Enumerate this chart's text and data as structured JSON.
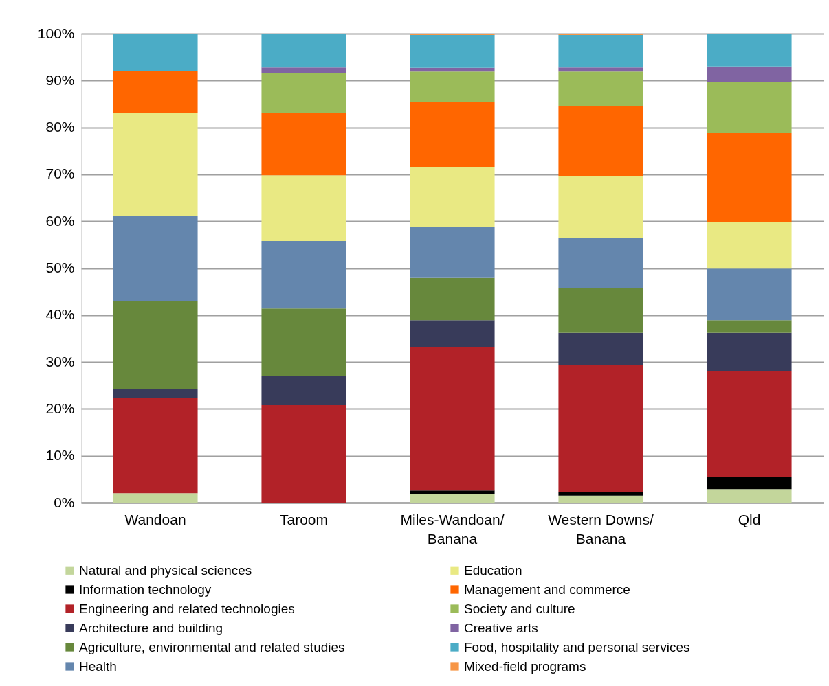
{
  "chart_data": {
    "type": "bar",
    "stacked": true,
    "categories": [
      "Wandoan",
      "Taroom",
      "Miles-Wandoan/\nBanana",
      "Western Downs/\nBanana",
      "Qld"
    ],
    "ylim": [
      0,
      100
    ],
    "yticks": [
      {
        "value": 0,
        "label": "0%"
      },
      {
        "value": 10,
        "label": "10%"
      },
      {
        "value": 20,
        "label": "20%"
      },
      {
        "value": 30,
        "label": "30%"
      },
      {
        "value": 40,
        "label": "40%"
      },
      {
        "value": 50,
        "label": "50%"
      },
      {
        "value": 60,
        "label": "60%"
      },
      {
        "value": 70,
        "label": "70%"
      },
      {
        "value": 80,
        "label": "80%"
      },
      {
        "value": 90,
        "label": "90%"
      },
      {
        "value": 100,
        "label": "100%"
      }
    ],
    "grid": "y",
    "legend": "bottom",
    "series": [
      {
        "name": "Natural and physical sciences",
        "color": "#c3d69b",
        "values": [
          2.0,
          0,
          1.9,
          1.5,
          2.9
        ]
      },
      {
        "name": "Information technology",
        "color": "#000000",
        "values": [
          0,
          0,
          0.7,
          0.7,
          2.5
        ]
      },
      {
        "name": "Engineering and related technologies",
        "color": "#b22228",
        "values": [
          20.4,
          20.8,
          30.6,
          27.2,
          22.6
        ]
      },
      {
        "name": "Architecture and building",
        "color": "#383b5a",
        "values": [
          1.9,
          6.3,
          5.7,
          6.8,
          8.2
        ]
      },
      {
        "name": "Agriculture, environmental and related studies",
        "color": "#67883c",
        "values": [
          18.6,
          14.3,
          9.0,
          9.6,
          2.7
        ]
      },
      {
        "name": "Health",
        "color": "#6486ad",
        "values": [
          18.3,
          14.4,
          10.8,
          10.7,
          11.0
        ]
      },
      {
        "name": "Education",
        "color": "#e9e983",
        "values": [
          21.8,
          14.0,
          12.9,
          13.2,
          10.0
        ]
      },
      {
        "name": "Management and commerce",
        "color": "#ff6600",
        "values": [
          9.1,
          13.2,
          13.9,
          14.8,
          19.0
        ]
      },
      {
        "name": "Society and culture",
        "color": "#9bbb59",
        "values": [
          0,
          8.5,
          6.4,
          7.4,
          10.7
        ]
      },
      {
        "name": "Creative arts",
        "color": "#8064a2",
        "values": [
          0,
          1.3,
          0.8,
          0.9,
          3.4
        ]
      },
      {
        "name": "Food, hospitality and personal services",
        "color": "#4bacc6",
        "values": [
          7.9,
          7.2,
          7.0,
          6.9,
          6.9
        ]
      },
      {
        "name": "Mixed-field programs",
        "color": "#f79646",
        "values": [
          0,
          0,
          0.3,
          0.3,
          0.1
        ]
      }
    ]
  }
}
